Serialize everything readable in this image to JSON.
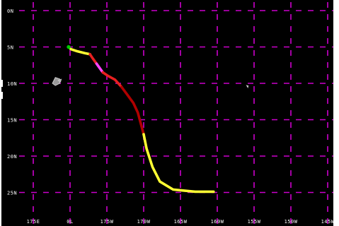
{
  "map": {
    "background_color": "#000000",
    "grid_color": "#cc00cc",
    "grid_style": "dashed",
    "label_color": "#ffffff",
    "lat_labels": [
      "0N",
      "5N",
      "10N",
      "15N",
      "20N",
      "25N"
    ],
    "lon_labels": [
      "175E",
      "0L",
      "175W",
      "170W",
      "165W",
      "160W",
      "155W",
      "150W",
      "145W"
    ]
  },
  "track": {
    "intensity_colors": {
      "green": "#00cc00",
      "yellow": "#ffff33",
      "red": "#e82020",
      "dark_red": "#b00000",
      "magenta": "#ff44ff"
    },
    "segments": [
      {
        "color": "green",
        "points": [
          [
            -175.2,
            5.0
          ],
          [
            -174.9,
            5.3
          ]
        ]
      },
      {
        "color": "yellow",
        "points": [
          [
            -174.9,
            5.3
          ],
          [
            -174.0,
            5.6
          ],
          [
            -173.0,
            5.85
          ],
          [
            -172.3,
            6.0
          ]
        ]
      },
      {
        "color": "red",
        "points": [
          [
            -172.3,
            6.0
          ],
          [
            -171.9,
            6.6
          ],
          [
            -171.4,
            7.3
          ]
        ]
      },
      {
        "color": "magenta",
        "points": [
          [
            -171.4,
            7.3
          ],
          [
            -170.9,
            8.0
          ],
          [
            -170.55,
            8.5
          ]
        ]
      },
      {
        "color": "red",
        "points": [
          [
            -170.55,
            8.5
          ],
          [
            -169.8,
            9.0
          ],
          [
            -168.9,
            9.5
          ],
          [
            -168.0,
            10.5
          ]
        ]
      },
      {
        "color": "dark_red",
        "points": [
          [
            -168.0,
            10.5
          ],
          [
            -167.2,
            11.6
          ],
          [
            -166.4,
            12.7
          ],
          [
            -165.8,
            14.0
          ],
          [
            -165.4,
            15.5
          ],
          [
            -165.0,
            17.0
          ]
        ]
      },
      {
        "color": "yellow",
        "points": [
          [
            -165.0,
            17.0
          ],
          [
            -164.6,
            19.0
          ],
          [
            -163.8,
            21.5
          ],
          [
            -162.8,
            23.5
          ],
          [
            -161.0,
            24.6
          ],
          [
            -158.0,
            24.9
          ],
          [
            -155.5,
            24.9
          ]
        ]
      }
    ]
  },
  "islands": [
    {
      "name": "island-a",
      "points": [
        [
          -177.0,
          9.2
        ],
        [
          -176.4,
          9.4
        ],
        [
          -176.4,
          10.0
        ],
        [
          -177.0,
          10.3
        ],
        [
          -177.4,
          10.0
        ]
      ]
    },
    {
      "name": "island-b",
      "points": [
        [
          -176.6,
          9.6
        ],
        [
          -176.2,
          9.45
        ],
        [
          -176.3,
          9.8
        ]
      ]
    },
    {
      "name": "island-c",
      "points": [
        [
          -151.0,
          10.3
        ],
        [
          -150.8,
          10.35
        ],
        [
          -150.85,
          10.55
        ]
      ]
    }
  ]
}
